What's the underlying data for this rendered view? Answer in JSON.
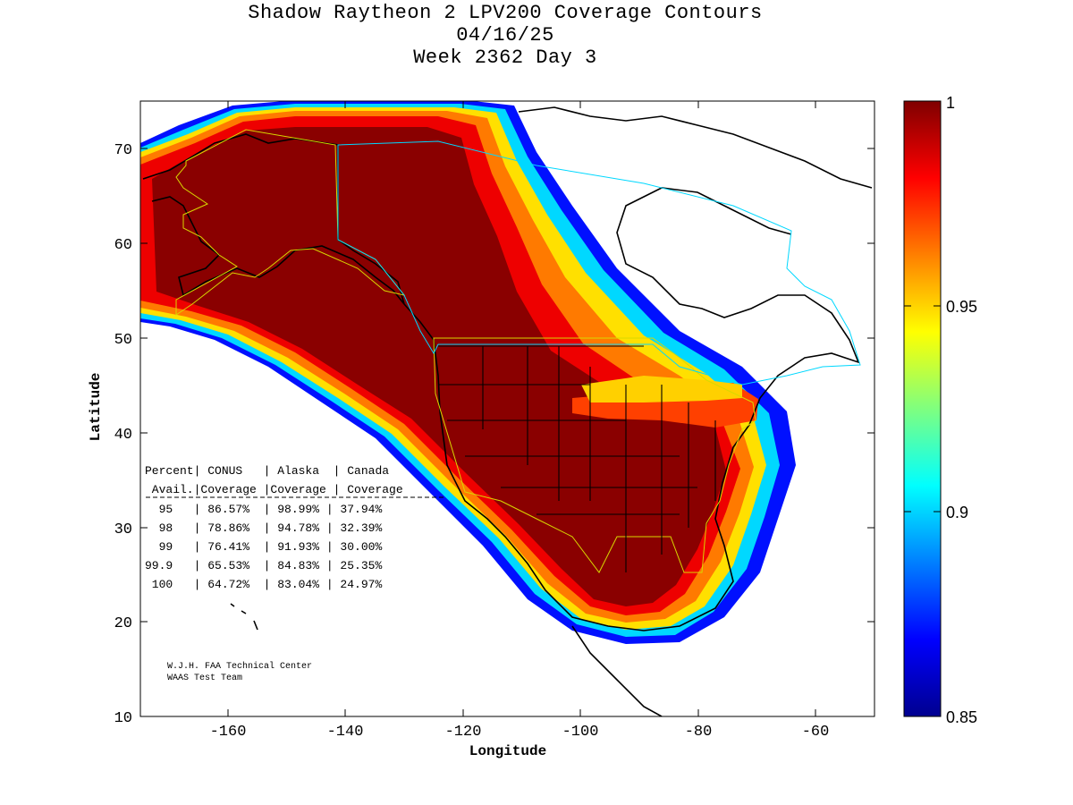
{
  "title": {
    "line1": "Shadow Raytheon 2 LPV200 Coverage Contours",
    "line2": "04/16/25",
    "line3": "Week 2362 Day 3"
  },
  "axes": {
    "xlabel": "Longitude",
    "ylabel": "Latitude",
    "x_ticks": [
      "-160",
      "-140",
      "-120",
      "-100",
      "-80",
      "-60"
    ],
    "y_ticks": [
      "70",
      "60",
      "50",
      "40",
      "30",
      "20",
      "10"
    ],
    "xlim": [
      -175,
      -50
    ],
    "ylim": [
      10,
      75
    ]
  },
  "colorbar": {
    "ticks": [
      "1",
      "0.95",
      "0.9",
      "0.85"
    ],
    "range": [
      0.85,
      1.0
    ],
    "colors": [
      "#00008f",
      "#0000ff",
      "#007fff",
      "#00ffff",
      "#7fff7f",
      "#ffff00",
      "#ff7f00",
      "#ff0000",
      "#7f0000"
    ]
  },
  "stats_table": {
    "header1": "Percent| CONUS   | Alaska  | Canada",
    "header2": " Avail.|Coverage |Coverage | Coverage",
    "rows": [
      "  95   | 86.57%  | 98.99% | 37.94%",
      "  98   | 78.86%  | 94.78% | 32.39%",
      "  99   | 76.41%  | 91.93% | 30.00%",
      "99.9   | 65.53%  | 84.83% | 25.35%",
      " 100   | 64.72%  | 83.04% | 24.97%"
    ]
  },
  "credit": {
    "line1": "W.J.H. FAA Technical Center",
    "line2": "WAAS Test Team"
  }
}
